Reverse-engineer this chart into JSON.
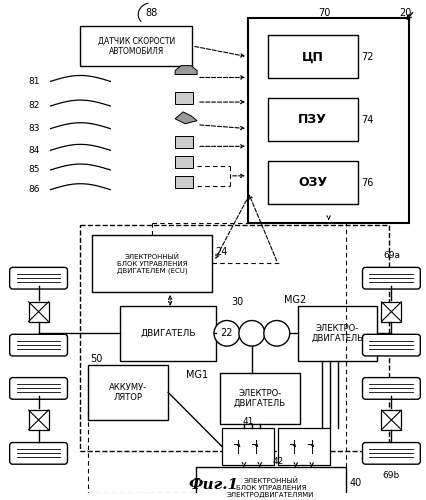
{
  "fig_label": "Фиг.1",
  "bg_color": "#ffffff",
  "sensor_box_text": "ДАТЧИК СКОРОСТИ\nАВТОМОБИЛЯ",
  "cpu_box_text": "ЦП",
  "rom_box_text": "ПЗУ",
  "ram_box_text": "ОЗУ",
  "ecu_box_text": "ЭЛЕКТРОННЫЙ\nБЛОК УПРАВЛЕНИЯ\nДВИГАТЕЛЕМ (ECU)",
  "engine_box_text": "ДВИГАТЕЛЬ",
  "mg2_motor_text": "ЭЛЕКТРО-\nДВИГАТЕЛЬ",
  "mg1_motor_text": "ЭЛЕКТРО-\nДВИГАТЕЛЬ",
  "battery_box_text": "АККУМУ-\nЛЯТОР",
  "edrive_box_text": "ЭЛЕКТРОННЫЙ\nБЛОК УПРАВЛЕНИЯ\nЭЛЕКТРОДВИГАТЕЛЯМИ"
}
